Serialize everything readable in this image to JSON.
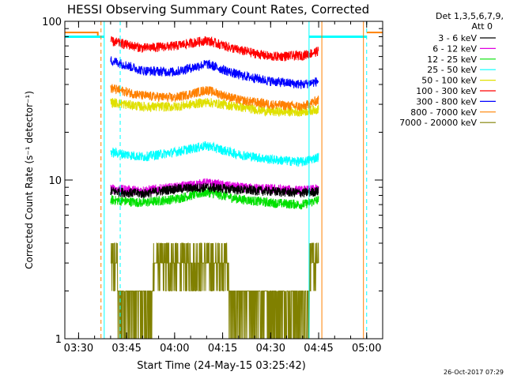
{
  "chart_data": {
    "type": "line",
    "title": "HESSI Observing Summary Count Rates, Corrected",
    "xlabel": "Start Time (24-May-15 03:25:42)",
    "ylabel": "Corrected Count Rate (s⁻¹ detector⁻¹)",
    "y_scale": "log",
    "ylim": [
      1,
      100
    ],
    "xlim": [
      "03:25:42",
      "05:05:00"
    ],
    "x_ticks": [
      "03:30",
      "03:45",
      "04:00",
      "04:15",
      "04:30",
      "04:45",
      "05:00"
    ],
    "y_ticks": [
      "1",
      "10",
      "100"
    ],
    "legend": {
      "header": [
        "Det 1,3,5,6,7,9,",
        "Att 0"
      ],
      "placement": "right"
    },
    "series": [
      {
        "name": "3 - 6 keV",
        "color": "#000000",
        "x": [
          "03:40",
          "03:50",
          "04:00",
          "04:10",
          "04:20",
          "04:30",
          "04:40",
          "04:45"
        ],
        "y": [
          8.5,
          8.2,
          8.8,
          9.0,
          8.7,
          8.5,
          8.3,
          8.5
        ]
      },
      {
        "name": "6 - 12 keV",
        "color": "#e000e0",
        "x": [
          "03:40",
          "03:50",
          "04:00",
          "04:10",
          "04:20",
          "04:30",
          "04:40",
          "04:45"
        ],
        "y": [
          8.8,
          8.6,
          9.0,
          9.6,
          9.0,
          8.8,
          8.6,
          8.8
        ]
      },
      {
        "name": "12 - 25 keV",
        "color": "#00e000",
        "x": [
          "03:40",
          "03:50",
          "04:00",
          "04:10",
          "04:20",
          "04:30",
          "04:40",
          "04:45"
        ],
        "y": [
          7.5,
          7.2,
          7.6,
          8.4,
          7.6,
          7.2,
          7.0,
          7.5
        ]
      },
      {
        "name": "25 - 50 keV",
        "color": "#00ffff",
        "x": [
          "03:40",
          "03:50",
          "04:00",
          "04:10",
          "04:20",
          "04:30",
          "04:40",
          "04:45"
        ],
        "y": [
          15,
          14,
          15,
          16.5,
          14.5,
          13.5,
          13,
          14
        ]
      },
      {
        "name": "50 - 100 keV",
        "color": "#e0e000",
        "x": [
          "03:40",
          "03:50",
          "04:00",
          "04:10",
          "04:20",
          "04:30",
          "04:40",
          "04:45"
        ],
        "y": [
          31,
          29,
          29,
          31,
          29,
          27,
          27,
          28
        ]
      },
      {
        "name": "100 - 300 keV",
        "color": "#ff0000",
        "x": [
          "03:40",
          "03:50",
          "04:00",
          "04:10",
          "04:20",
          "04:30",
          "04:40",
          "04:45"
        ],
        "y": [
          75,
          68,
          70,
          76,
          66,
          60,
          61,
          65
        ]
      },
      {
        "name": "300 - 800 keV",
        "color": "#0000ff",
        "x": [
          "03:40",
          "03:50",
          "04:00",
          "04:10",
          "04:20",
          "04:30",
          "04:40",
          "04:45"
        ],
        "y": [
          57,
          49,
          48,
          54,
          46,
          42,
          40,
          42
        ]
      },
      {
        "name": "800 - 7000 keV",
        "color": "#ff8000",
        "x": [
          "03:40",
          "03:50",
          "04:00",
          "04:10",
          "04:20",
          "04:30",
          "04:40",
          "04:45"
        ],
        "y": [
          38,
          34,
          33,
          37,
          32,
          30,
          29,
          32
        ]
      },
      {
        "name": "7000 - 20000 keV",
        "color": "#808000",
        "x": [
          "03:40",
          "03:50",
          "04:00",
          "04:10",
          "04:20",
          "04:30",
          "04:40",
          "04:45"
        ],
        "y": [
          2.0,
          1.6,
          2.7,
          2.8,
          1.6,
          1.6,
          1.6,
          2.4
        ]
      }
    ],
    "markers": [
      {
        "color": "#00ffff",
        "style": "solid",
        "x": "03:38"
      },
      {
        "color": "#00ffff",
        "style": "dashed",
        "x": "03:43"
      },
      {
        "color": "#ff8000",
        "style": "dashed",
        "x": "03:37"
      },
      {
        "color": "#00ffff",
        "style": "solid",
        "x": "04:42"
      },
      {
        "color": "#ff8000",
        "style": "solid",
        "x": "04:46"
      },
      {
        "color": "#ff8000",
        "style": "solid",
        "x": "04:59"
      },
      {
        "color": "#00ffff",
        "style": "dashed",
        "x": "05:00"
      }
    ],
    "footer": "26-Oct-2017 07:29"
  }
}
